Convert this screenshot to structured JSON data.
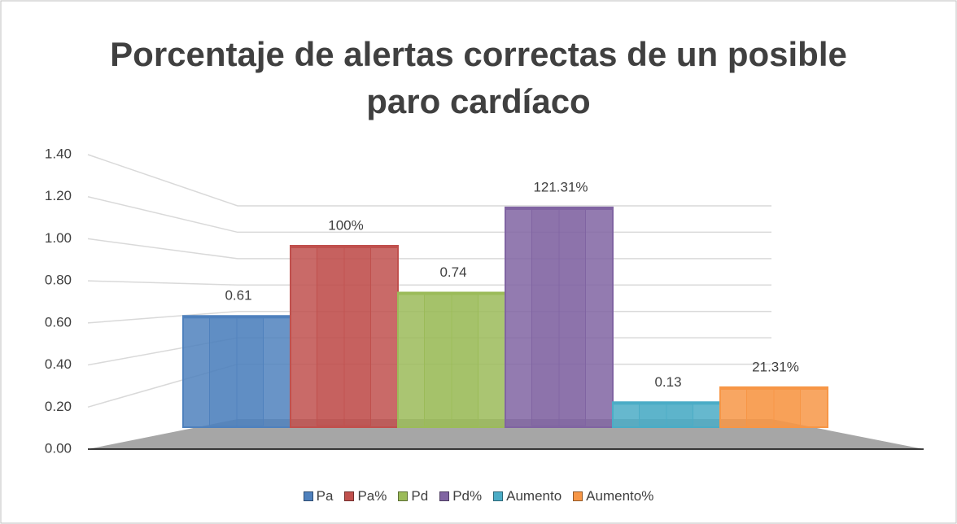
{
  "chart_data": {
    "type": "bar3d",
    "title": "Porcentaje de alertas correctas de un posible paro cardíaco",
    "ylim": [
      0,
      1.4
    ],
    "yticks": [
      {
        "value": 0,
        "label": "0.00"
      },
      {
        "value": 0.2,
        "label": "0.20"
      },
      {
        "value": 0.4,
        "label": "0.40"
      },
      {
        "value": 0.6,
        "label": "0.60"
      },
      {
        "value": 0.8,
        "label": "0.80"
      },
      {
        "value": 1.0,
        "label": "1.00"
      },
      {
        "value": 1.2,
        "label": "1.20"
      },
      {
        "value": 1.4,
        "label": "1.40"
      }
    ],
    "grid": true,
    "legend": "bottom",
    "series": [
      {
        "name": "Pa",
        "color": "#4f81bd",
        "values": [
          0.61
        ]
      },
      {
        "name": "Pa%",
        "color": "#c0504d",
        "values": [
          1.0
        ],
        "value_labels": [
          "100%"
        ]
      },
      {
        "name": "Pd",
        "color": "#9bbb59",
        "values": [
          0.74
        ]
      },
      {
        "name": "Pd%",
        "color": "#8064a2",
        "values": [
          1.2131
        ],
        "value_labels": [
          "121.31%"
        ]
      },
      {
        "name": "Aumento",
        "color": "#4bacc6",
        "values": [
          0.13
        ]
      },
      {
        "name": "Aumento%",
        "color": "#f79646",
        "values": [
          0.2131
        ],
        "value_labels": [
          "21.31%"
        ]
      }
    ]
  }
}
